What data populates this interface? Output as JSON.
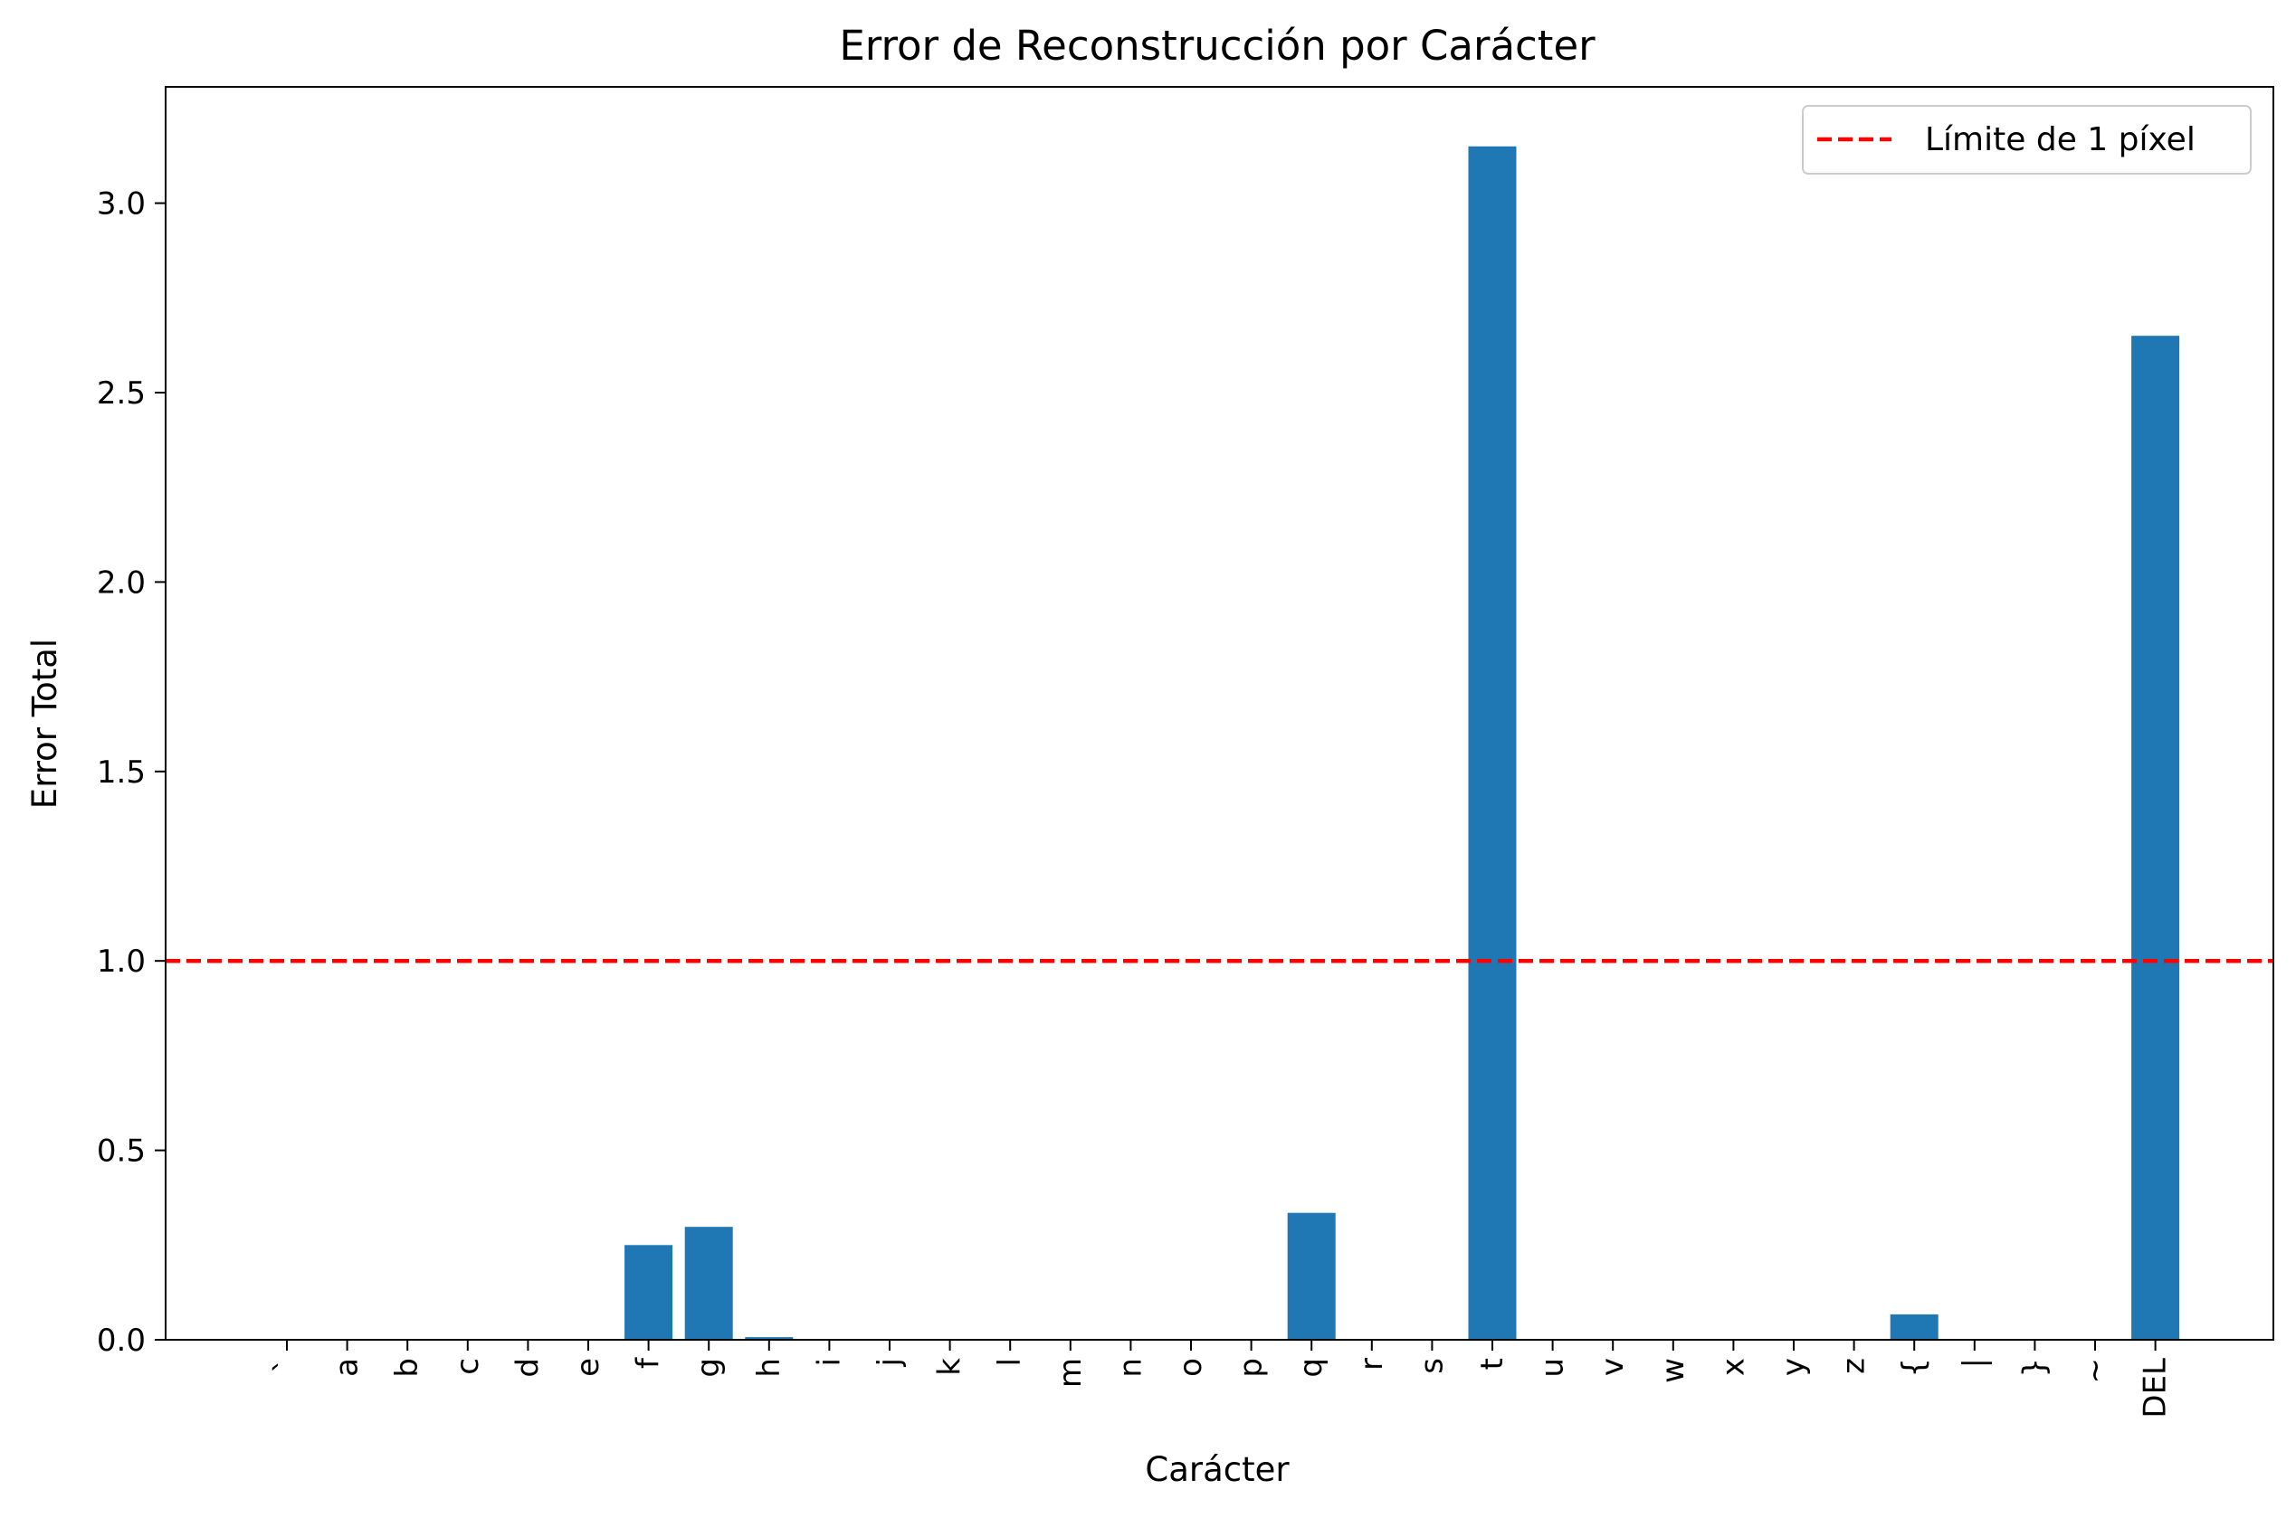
{
  "chart_data": {
    "type": "bar",
    "title": "Error de Reconstrucción por Carácter",
    "xlabel": "Carácter",
    "ylabel": "Error Total",
    "ylim": [
      0,
      3.307
    ],
    "yticks": [
      "0.0",
      "0.5",
      "1.0",
      "1.5",
      "2.0",
      "2.5",
      "3.0"
    ],
    "categories": [
      "`",
      "a",
      "b",
      "c",
      "d",
      "e",
      "f",
      "g",
      "h",
      "i",
      "j",
      "k",
      "l",
      "m",
      "n",
      "o",
      "p",
      "q",
      "r",
      "s",
      "t",
      "u",
      "v",
      "w",
      "x",
      "y",
      "z",
      "{",
      "|",
      "}",
      "~",
      "DEL"
    ],
    "values": [
      0,
      0,
      0,
      0,
      0,
      0,
      0.25,
      0.298,
      0.007,
      0,
      0,
      0,
      0,
      0,
      0,
      0,
      0,
      0.335,
      0,
      0,
      3.15,
      0,
      0,
      0,
      0,
      0,
      0,
      0.067,
      0,
      0,
      0,
      2.65
    ],
    "bar_color": "#1f77b4",
    "reference_line": {
      "y": 1.0,
      "color": "#ff0000",
      "style": "dashed",
      "label": "Límite de 1 píxel"
    },
    "legend_position": "top-right",
    "grid": false
  }
}
